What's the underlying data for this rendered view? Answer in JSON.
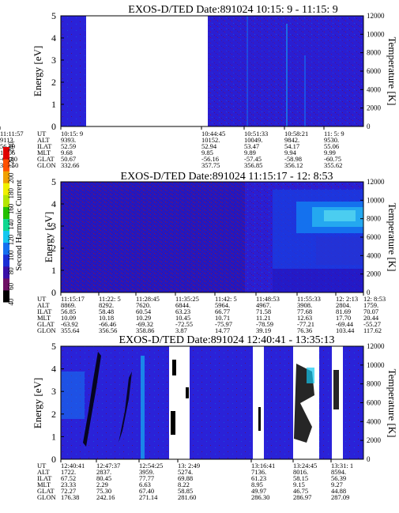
{
  "chart_data": [
    {
      "type": "heatmap",
      "title": "EXOS-D/TED   Date:891024  10:15: 9 - 11:15: 9",
      "ylabel": "Energy [eV]",
      "y2label": "Temperature [K]",
      "ylim": [
        0,
        5
      ],
      "yticks": [
        "0",
        "1",
        "2",
        "3",
        "4",
        "5"
      ],
      "y2lim": [
        0,
        12000
      ],
      "y2ticks": [
        "0",
        "2000",
        "4000",
        "6000",
        "8000",
        "10000",
        "12000"
      ],
      "grid": false,
      "data_gaps": [
        [
          "10:15:9+",
          "10:44:45"
        ]
      ],
      "ephemeris": {
        "rows": [
          "UT",
          "ALT",
          "ILAT",
          "MLT",
          "GLAT",
          "GLON"
        ],
        "columns": [
          [
            "10:15: 9",
            "9393.",
            "52.59",
            "9.68",
            "50.67",
            "332.66"
          ],
          [
            "10:44:45",
            "10152.",
            "52.94",
            "9.85",
            "-56.16",
            "357.75"
          ],
          [
            "10:51:33",
            "10049.",
            "53.47",
            "9.89",
            "-57.45",
            "356.85"
          ],
          [
            "10:58:21",
            "9842.",
            "54.17",
            "9.94",
            "-58.98",
            "356.12"
          ],
          [
            "11: 5: 9",
            "9530.",
            "55.06",
            "9.99",
            "-60.75",
            "355.62"
          ],
          [
            "11:11:57",
            "9113.",
            "56.19",
            "10.06",
            "-62.80",
            "355.50"
          ]
        ]
      }
    },
    {
      "type": "heatmap",
      "title": "EXOS-D/TED   Date:891024  11:15:17 - 12: 8:53",
      "ylabel": "Energy [eV]",
      "y2label": "Temperature [K]",
      "ylim": [
        0,
        5
      ],
      "yticks": [
        "0",
        "1",
        "2",
        "3",
        "4",
        "5"
      ],
      "y2lim": [
        0,
        12000
      ],
      "y2ticks": [
        "0",
        "2000",
        "4000",
        "6000",
        "8000",
        "10000",
        "12000"
      ],
      "grid": false,
      "colorbar": {
        "label": "Second Harmonic Current",
        "ticks": [
          "40",
          "60",
          "80",
          "100",
          "120",
          "140",
          "160",
          "180",
          "200",
          "220",
          "240"
        ],
        "colors": [
          "#000000",
          "#6e0f64",
          "#3a0fa8",
          "#1a2fd6",
          "#1470f0",
          "#14c8f0",
          "#10d890",
          "#22c000",
          "#b4e600",
          "#f0f000",
          "#f0a000",
          "#ff5000",
          "#e00000"
        ]
      },
      "ephemeris": {
        "rows": [
          "UT",
          "ALT",
          "ILAT",
          "MLT",
          "GLAT",
          "GLON"
        ],
        "columns": [
          [
            "11:15:17",
            "8869.",
            "56.85",
            "10.09",
            "-63.92",
            "355.64"
          ],
          [
            "11:22: 5",
            "8292.",
            "58.48",
            "10.18",
            "-66.46",
            "356.56"
          ],
          [
            "11:28:45",
            "7620.",
            "60.54",
            "10.29",
            "-69.32",
            "358.86"
          ],
          [
            "11:35:25",
            "6844.",
            "63.23",
            "10.45",
            "-72.55",
            "3.87"
          ],
          [
            "11:42: 5",
            "5964.",
            "66.77",
            "10.71",
            "-75.97",
            "14.77"
          ],
          [
            "11:48:53",
            "4967.",
            "71.58",
            "11.21",
            "-78.59",
            "39.19"
          ],
          [
            "11:55:33",
            "3908.",
            "77.68",
            "12.63",
            "-77.21",
            "76.36"
          ],
          [
            "12: 2:13",
            "2804.",
            "81.69",
            "17.70",
            "-69.44",
            "103.44"
          ],
          [
            "12: 8:53",
            "1759.",
            "70.07",
            "20.44",
            "-55.27",
            "117.62"
          ]
        ]
      }
    },
    {
      "type": "heatmap",
      "title": "EXOS-D/TED   Date:891024  12:40:41 - 13:35:13",
      "ylabel": "Energy [eV]",
      "y2label": "Temperature [K]",
      "ylim": [
        0,
        5
      ],
      "yticks": [
        "0",
        "1",
        "2",
        "3",
        "4",
        "5"
      ],
      "y2lim": [
        0,
        12000
      ],
      "y2ticks": [
        "0",
        "2000",
        "4000",
        "6000",
        "8000",
        "10000",
        "12000"
      ],
      "grid": false,
      "ephemeris": {
        "rows": [
          "UT",
          "ALT",
          "ILAT",
          "MLT",
          "GLAT",
          "GLON"
        ],
        "columns": [
          [
            "12:40:41",
            "1722.",
            "67.52",
            "23.33",
            "72.27",
            "176.38"
          ],
          [
            "12:47:37",
            "2837.",
            "80.45",
            "2.29",
            "75.30",
            "242.16"
          ],
          [
            "12:54:25",
            "3959.",
            "77.77",
            "6.63",
            "67.40",
            "271.14"
          ],
          [
            "13: 2:49",
            "5274.",
            "69.88",
            "8.22",
            "58.85",
            "281.60"
          ],
          [
            "13:16:41",
            "7136.",
            "61.23",
            "8.95",
            "49.97",
            "286.30"
          ],
          [
            "13:24:45",
            "8016.",
            "58.15",
            "9.15",
            "46.75",
            "286.97"
          ],
          [
            "13:31: 1",
            "8594.",
            "56.39",
            "9.27",
            "44.88",
            "287.09"
          ]
        ]
      }
    }
  ]
}
